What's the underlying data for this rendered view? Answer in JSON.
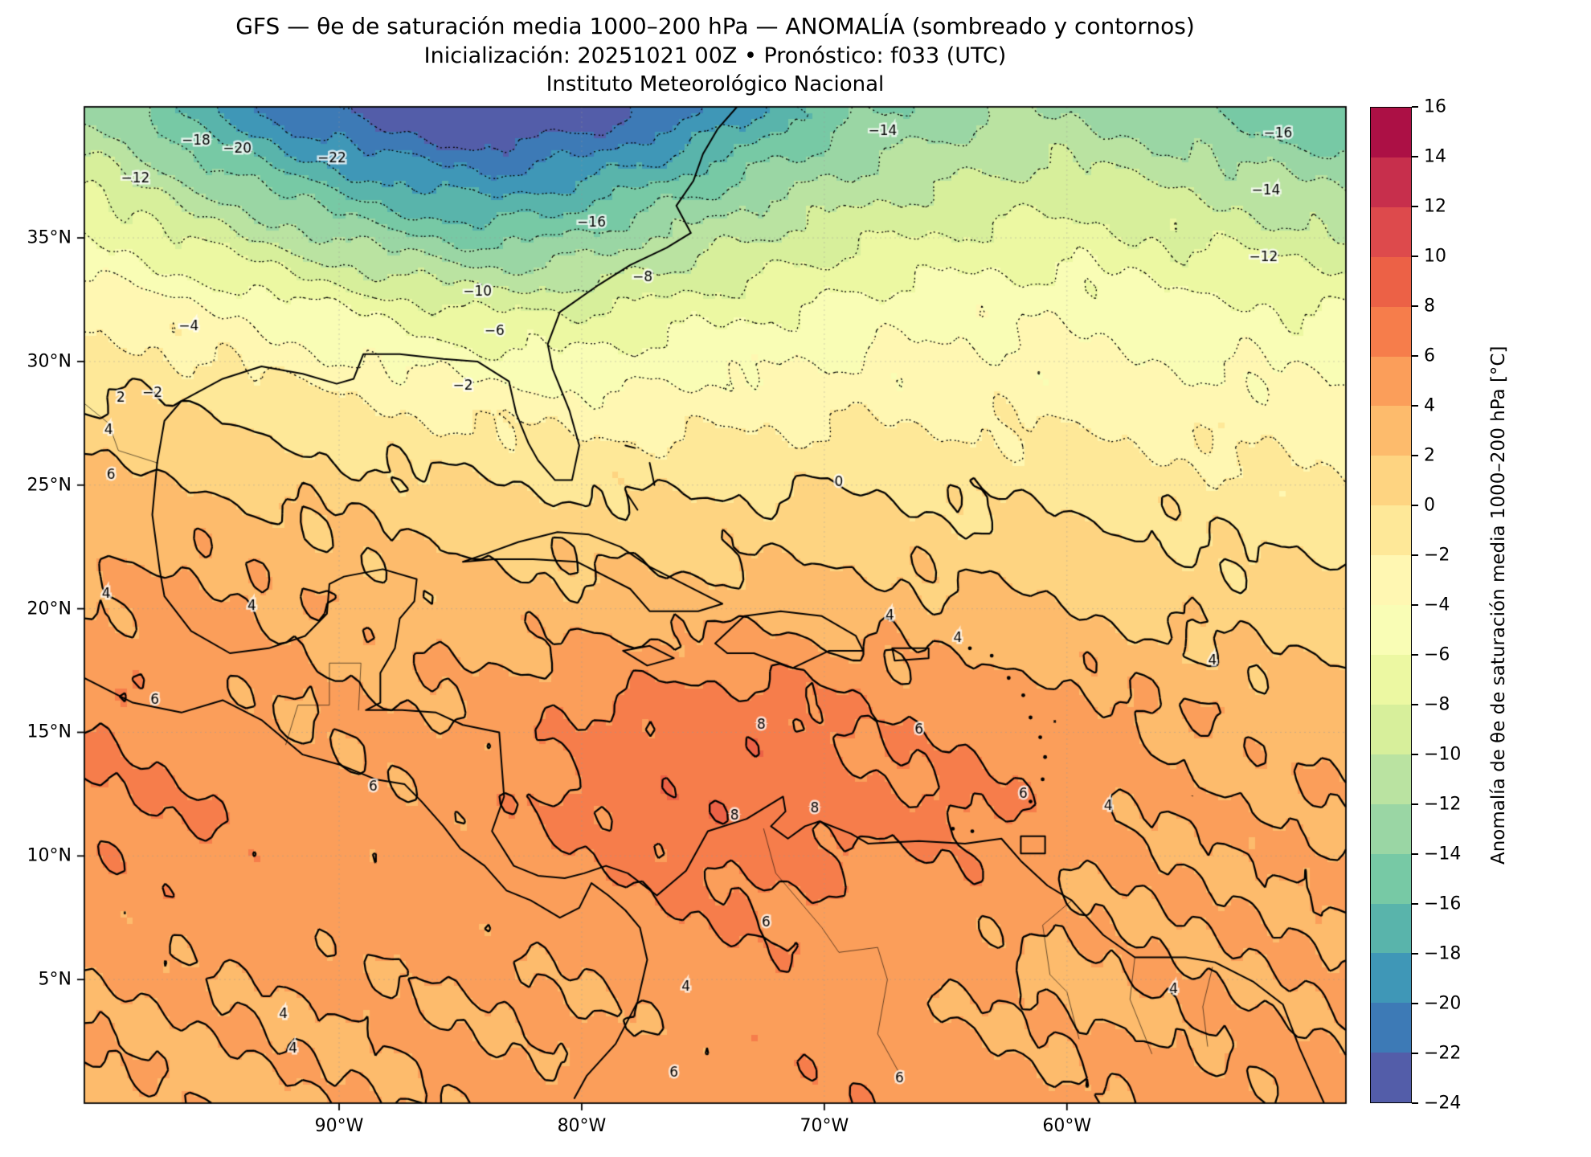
{
  "chart_data": {
    "type": "heatmap",
    "title": "GFS — θe de saturación media 1000–200 hPa — ANOMALÍA (sombreado y contornos)",
    "subtitle": "Inicialización: 20251021 00Z   •   Pronóstico: f033 (UTC)",
    "institution": "Instituto Meteorológico Nacional",
    "colorbar": {
      "label": "Anomalía de θe de saturación media 1000–200 hPa [°C]",
      "min": -24,
      "max": 16,
      "step": 2,
      "tick_labels": [
        "16",
        "14",
        "12",
        "10",
        "8",
        "6",
        "4",
        "2",
        "0",
        "−2",
        "−4",
        "−6",
        "−8",
        "−10",
        "−12",
        "−14",
        "−16",
        "−18",
        "−20",
        "−22",
        "−24"
      ]
    },
    "colormap_anchors": [
      "#5e4fa2",
      "#3288bd",
      "#66c2a5",
      "#abdda4",
      "#e6f598",
      "#ffffbf",
      "#fee08b",
      "#fdae61",
      "#f46d43",
      "#d53e4f",
      "#9e0142"
    ],
    "colors": {
      "contour": "#000000",
      "coastline": "#000000",
      "border": "#000000",
      "gridline": "#999999",
      "background": "#ffffff"
    },
    "axes": {
      "lon_range": [
        -100.5,
        -48.5
      ],
      "lat_range": [
        0,
        40.3
      ],
      "x_ticks": [
        {
          "label": "90°W",
          "lon": -90
        },
        {
          "label": "80°W",
          "lon": -80
        },
        {
          "label": "70°W",
          "lon": -70
        },
        {
          "label": "60°W",
          "lon": -60
        }
      ],
      "y_ticks": [
        {
          "label": "5°N",
          "lat": 5
        },
        {
          "label": "10°N",
          "lat": 10
        },
        {
          "label": "15°N",
          "lat": 15
        },
        {
          "label": "20°N",
          "lat": 20
        },
        {
          "label": "25°N",
          "lat": 25
        },
        {
          "label": "30°N",
          "lat": 30
        },
        {
          "label": "35°N",
          "lat": 35
        }
      ],
      "grid_on": true
    },
    "grid": {
      "lons": [
        -100,
        -96,
        -92,
        -88,
        -84,
        -80,
        -76,
        -72,
        -68,
        -64,
        -60,
        -56,
        -52,
        -48
      ],
      "lats": [
        40,
        36,
        32,
        28,
        24,
        20,
        16,
        12,
        8,
        4,
        0
      ],
      "values": [
        [
          -12,
          -17,
          -21,
          -23.5,
          -24.5,
          -23.5,
          -21,
          -17,
          -14,
          -12.5,
          -12,
          -13,
          -15,
          -16
        ],
        [
          -7,
          -10,
          -13,
          -15.5,
          -17,
          -15.5,
          -13,
          -11,
          -9.5,
          -8.5,
          -8,
          -9,
          -10,
          -11
        ],
        [
          -2.5,
          -3.5,
          -5,
          -6.5,
          -8,
          -8,
          -7,
          -6,
          -5,
          -4.5,
          -4.5,
          -5,
          -5.5,
          -6
        ],
        [
          0.5,
          0,
          -1,
          -2,
          -2.5,
          -3,
          -3,
          -2.5,
          -2.5,
          -2.5,
          -2.5,
          -3,
          -3,
          -3.5
        ],
        [
          3,
          3,
          2,
          1.5,
          1,
          0.5,
          0.5,
          0.5,
          0.5,
          0,
          0,
          -0.5,
          -1,
          -1.5
        ],
        [
          4,
          5,
          4,
          3,
          3,
          3,
          3,
          3.5,
          3,
          2.5,
          2,
          1.5,
          1,
          1
        ],
        [
          6,
          5,
          4,
          4,
          4.5,
          6,
          7,
          7,
          5.5,
          5,
          5,
          4,
          3,
          3
        ],
        [
          6,
          6,
          5,
          4.5,
          5,
          6.5,
          7.5,
          7.5,
          6.5,
          6.5,
          5,
          4,
          4,
          4
        ],
        [
          5,
          5,
          5,
          5,
          5,
          5,
          6,
          6,
          5,
          5,
          4,
          4,
          4,
          4
        ],
        [
          4,
          4,
          4,
          4,
          4,
          4,
          4.5,
          5,
          5,
          4,
          3.5,
          4,
          4,
          4
        ],
        [
          3.5,
          3.5,
          3.5,
          4,
          4.5,
          5,
          5,
          5.5,
          5.5,
          5,
          4.5,
          4.5,
          4.5,
          5
        ]
      ]
    },
    "contours": {
      "dotted_levels": [
        -22,
        -20,
        -18,
        -16,
        -14,
        -12,
        -10,
        -8,
        -6,
        -4,
        -2
      ],
      "solid_levels": [
        0,
        2,
        4,
        6,
        8
      ],
      "labels": [
        {
          "text": "−18",
          "lon": -95.9,
          "lat": 38.9
        },
        {
          "text": "−20",
          "lon": -94.2,
          "lat": 38.6
        },
        {
          "text": "−22",
          "lon": -90.3,
          "lat": 38.2
        },
        {
          "text": "−12",
          "lon": -98.4,
          "lat": 37.4
        },
        {
          "text": "−14",
          "lon": -67.6,
          "lat": 39.3
        },
        {
          "text": "−16",
          "lon": -51.3,
          "lat": 39.2
        },
        {
          "text": "−14",
          "lon": -51.8,
          "lat": 36.9
        },
        {
          "text": "−12",
          "lon": -51.9,
          "lat": 34.2
        },
        {
          "text": "−16",
          "lon": -79.6,
          "lat": 35.6
        },
        {
          "text": "−10",
          "lon": -84.3,
          "lat": 32.8
        },
        {
          "text": "−8",
          "lon": -77.5,
          "lat": 33.4
        },
        {
          "text": "−6",
          "lon": -83.6,
          "lat": 31.2
        },
        {
          "text": "−4",
          "lon": -96.2,
          "lat": 31.4
        },
        {
          "text": "−2",
          "lon": -97.7,
          "lat": 28.7
        },
        {
          "text": "−2",
          "lon": -84.9,
          "lat": 29.0
        },
        {
          "text": "0",
          "lon": -69.4,
          "lat": 25.1
        },
        {
          "text": "2",
          "lon": -99.0,
          "lat": 28.5
        },
        {
          "text": "4",
          "lon": -99.5,
          "lat": 27.2
        },
        {
          "text": "6",
          "lon": -99.4,
          "lat": 25.4
        },
        {
          "text": "4",
          "lon": -99.6,
          "lat": 20.6
        },
        {
          "text": "4",
          "lon": -93.6,
          "lat": 20.1
        },
        {
          "text": "4",
          "lon": -67.3,
          "lat": 19.7
        },
        {
          "text": "4",
          "lon": -64.5,
          "lat": 18.8
        },
        {
          "text": "4",
          "lon": -54.0,
          "lat": 17.9
        },
        {
          "text": "6",
          "lon": -97.6,
          "lat": 16.3
        },
        {
          "text": "6",
          "lon": -88.6,
          "lat": 12.8
        },
        {
          "text": "8",
          "lon": -72.6,
          "lat": 15.3
        },
        {
          "text": "6",
          "lon": -66.1,
          "lat": 15.1
        },
        {
          "text": "8",
          "lon": -73.7,
          "lat": 11.6
        },
        {
          "text": "8",
          "lon": -70.4,
          "lat": 11.9
        },
        {
          "text": "6",
          "lon": -61.8,
          "lat": 12.5
        },
        {
          "text": "4",
          "lon": -58.3,
          "lat": 12.0
        },
        {
          "text": "6",
          "lon": -72.4,
          "lat": 7.3
        },
        {
          "text": "4",
          "lon": -75.7,
          "lat": 4.7
        },
        {
          "text": "4",
          "lon": -92.3,
          "lat": 3.6
        },
        {
          "text": "4",
          "lon": -91.9,
          "lat": 2.2
        },
        {
          "text": "6",
          "lon": -76.2,
          "lat": 1.2
        },
        {
          "text": "6",
          "lon": -66.9,
          "lat": 1.0
        },
        {
          "text": "4",
          "lon": -55.6,
          "lat": 4.6
        }
      ]
    },
    "coastlines": [
      [
        [
          -97.5,
          25.9
        ],
        [
          -97.2,
          27.6
        ],
        [
          -96.5,
          28.4
        ],
        [
          -94.8,
          29.3
        ],
        [
          -93.2,
          29.8
        ],
        [
          -91.5,
          29.5
        ],
        [
          -90.1,
          29.1
        ],
        [
          -89.4,
          29.3
        ],
        [
          -89.0,
          30.3
        ],
        [
          -87.5,
          30.3
        ],
        [
          -85.7,
          30.1
        ],
        [
          -84.3,
          30.0
        ],
        [
          -83.0,
          29.2
        ],
        [
          -82.7,
          27.9
        ],
        [
          -82.2,
          26.7
        ],
        [
          -81.8,
          26.0
        ],
        [
          -81.1,
          25.2
        ],
        [
          -80.4,
          25.2
        ],
        [
          -80.1,
          26.6
        ],
        [
          -80.5,
          28.0
        ],
        [
          -81.2,
          29.7
        ],
        [
          -81.4,
          30.7
        ],
        [
          -80.9,
          32.0
        ],
        [
          -79.3,
          33.1
        ],
        [
          -78.0,
          33.9
        ],
        [
          -76.5,
          34.6
        ],
        [
          -75.5,
          35.2
        ],
        [
          -76.1,
          36.3
        ],
        [
          -75.4,
          37.3
        ],
        [
          -75.0,
          38.4
        ],
        [
          -74.4,
          39.4
        ],
        [
          -73.6,
          40.3
        ]
      ],
      [
        [
          -97.5,
          25.9
        ],
        [
          -97.7,
          23.8
        ],
        [
          -97.4,
          21.6
        ],
        [
          -97.2,
          20.5
        ],
        [
          -96.1,
          19.1
        ],
        [
          -94.5,
          18.2
        ],
        [
          -92.9,
          18.4
        ],
        [
          -91.4,
          18.9
        ],
        [
          -90.5,
          19.8
        ],
        [
          -90.4,
          21.0
        ],
        [
          -89.8,
          21.3
        ],
        [
          -88.2,
          21.6
        ],
        [
          -86.8,
          21.2
        ],
        [
          -86.9,
          20.3
        ],
        [
          -87.5,
          19.6
        ],
        [
          -87.7,
          18.4
        ],
        [
          -88.3,
          17.4
        ],
        [
          -88.3,
          16.2
        ],
        [
          -88.9,
          15.9
        ],
        [
          -87.4,
          15.9
        ],
        [
          -86.0,
          15.8
        ],
        [
          -84.9,
          15.3
        ],
        [
          -83.4,
          15.0
        ],
        [
          -83.2,
          12.4
        ],
        [
          -83.7,
          11.0
        ],
        [
          -82.8,
          9.6
        ],
        [
          -81.8,
          9.2
        ],
        [
          -80.7,
          9.1
        ],
        [
          -79.9,
          9.3
        ],
        [
          -79.0,
          9.6
        ],
        [
          -78.1,
          9.3
        ],
        [
          -77.3,
          8.7
        ]
      ],
      [
        [
          -100.5,
          17.2
        ],
        [
          -98.5,
          16.2
        ],
        [
          -96.5,
          15.8
        ],
        [
          -94.8,
          16.3
        ],
        [
          -93.2,
          15.5
        ],
        [
          -91.5,
          14.1
        ],
        [
          -90.0,
          13.7
        ],
        [
          -88.5,
          13.1
        ],
        [
          -87.3,
          12.9
        ],
        [
          -86.6,
          12.2
        ],
        [
          -85.7,
          11.2
        ],
        [
          -85.0,
          10.3
        ],
        [
          -84.0,
          9.6
        ],
        [
          -83.1,
          8.6
        ],
        [
          -82.1,
          8.2
        ],
        [
          -80.9,
          7.5
        ],
        [
          -80.1,
          7.9
        ],
        [
          -79.6,
          8.9
        ],
        [
          -78.9,
          8.4
        ],
        [
          -78.2,
          7.8
        ],
        [
          -77.6,
          7.1
        ],
        [
          -77.3,
          5.8
        ],
        [
          -77.7,
          4.1
        ],
        [
          -78.6,
          2.4
        ],
        [
          -79.8,
          1.1
        ],
        [
          -80.3,
          0.2
        ]
      ],
      [
        [
          -77.3,
          8.7
        ],
        [
          -76.9,
          8.4
        ],
        [
          -75.7,
          9.4
        ],
        [
          -74.8,
          11.0
        ],
        [
          -73.2,
          11.5
        ],
        [
          -71.7,
          12.4
        ],
        [
          -71.6,
          11.8
        ],
        [
          -72.2,
          11.2
        ],
        [
          -71.5,
          10.7
        ],
        [
          -70.8,
          11.2
        ],
        [
          -70.2,
          11.4
        ],
        [
          -68.9,
          10.9
        ],
        [
          -68.2,
          10.5
        ],
        [
          -66.1,
          10.6
        ],
        [
          -64.2,
          10.5
        ],
        [
          -62.7,
          10.7
        ],
        [
          -61.9,
          9.8
        ],
        [
          -60.8,
          8.8
        ],
        [
          -59.8,
          8.2
        ],
        [
          -58.5,
          6.8
        ],
        [
          -57.2,
          5.9
        ],
        [
          -55.1,
          5.9
        ],
        [
          -53.9,
          5.7
        ],
        [
          -52.3,
          4.9
        ],
        [
          -51.1,
          4.0
        ],
        [
          -50.4,
          2.2
        ],
        [
          -49.9,
          1.1
        ],
        [
          -49.4,
          0.0
        ]
      ],
      [
        [
          -84.9,
          21.9
        ],
        [
          -84.0,
          22.2
        ],
        [
          -82.6,
          22.7
        ],
        [
          -81.0,
          23.1
        ],
        [
          -79.7,
          23.0
        ],
        [
          -78.4,
          22.5
        ],
        [
          -77.2,
          21.7
        ],
        [
          -75.6,
          20.9
        ],
        [
          -74.2,
          20.2
        ],
        [
          -75.2,
          19.9
        ],
        [
          -77.2,
          19.9
        ],
        [
          -78.0,
          20.8
        ],
        [
          -80.2,
          21.9
        ],
        [
          -82.0,
          22.0
        ],
        [
          -83.6,
          22.0
        ],
        [
          -84.9,
          21.9
        ]
      ],
      [
        [
          -74.5,
          18.6
        ],
        [
          -73.3,
          19.7
        ],
        [
          -71.8,
          19.9
        ],
        [
          -70.1,
          19.7
        ],
        [
          -68.7,
          18.9
        ],
        [
          -68.4,
          18.3
        ],
        [
          -69.8,
          18.3
        ],
        [
          -71.3,
          17.6
        ],
        [
          -72.9,
          18.2
        ],
        [
          -74.0,
          18.2
        ],
        [
          -74.5,
          18.6
        ]
      ],
      [
        [
          -78.3,
          18.3
        ],
        [
          -77.2,
          18.5
        ],
        [
          -76.2,
          18.0
        ],
        [
          -77.3,
          17.7
        ],
        [
          -78.3,
          18.3
        ]
      ],
      [
        [
          -67.2,
          18.4
        ],
        [
          -65.7,
          18.4
        ],
        [
          -65.7,
          18.0
        ],
        [
          -67.1,
          17.9
        ],
        [
          -67.2,
          18.4
        ]
      ],
      [
        [
          -61.9,
          10.8
        ],
        [
          -60.9,
          10.8
        ],
        [
          -60.9,
          10.1
        ],
        [
          -61.9,
          10.1
        ],
        [
          -61.9,
          10.8
        ]
      ],
      [
        [
          -78.2,
          26.6
        ],
        [
          -77.8,
          26.5
        ]
      ],
      [
        [
          -77.2,
          25.9
        ],
        [
          -77.0,
          25.0
        ]
      ],
      [
        [
          -78.1,
          24.6
        ],
        [
          -77.7,
          24.0
        ]
      ]
    ],
    "island_dots": [
      [
        -64.0,
        18.4
      ],
      [
        -63.1,
        18.1
      ],
      [
        -62.4,
        17.2
      ],
      [
        -61.8,
        16.5
      ],
      [
        -61.5,
        15.6
      ],
      [
        -61.1,
        14.8
      ],
      [
        -60.9,
        14.0
      ],
      [
        -61.0,
        13.1
      ],
      [
        -61.5,
        12.2
      ],
      [
        -64.7,
        11.1
      ],
      [
        -63.9,
        11.0
      ]
    ],
    "borders": [
      [
        [
          -97.5,
          25.9
        ],
        [
          -99.1,
          26.4
        ],
        [
          -99.5,
          27.5
        ],
        [
          -100.5,
          28.3
        ]
      ],
      [
        [
          -92.2,
          14.5
        ],
        [
          -91.7,
          16.1
        ],
        [
          -90.4,
          16.1
        ],
        [
          -90.4,
          17.8
        ],
        [
          -89.1,
          17.8
        ],
        [
          -89.2,
          15.9
        ]
      ],
      [
        [
          -72.5,
          11.1
        ],
        [
          -72.0,
          9.3
        ],
        [
          -70.1,
          7.1
        ],
        [
          -69.4,
          6.1
        ],
        [
          -67.8,
          6.3
        ],
        [
          -67.4,
          5.0
        ],
        [
          -67.8,
          2.8
        ],
        [
          -66.9,
          1.2
        ]
      ],
      [
        [
          -59.8,
          8.2
        ],
        [
          -61.0,
          7.2
        ],
        [
          -60.7,
          5.2
        ],
        [
          -60.0,
          4.5
        ],
        [
          -59.5,
          2.6
        ]
      ],
      [
        [
          -57.2,
          5.9
        ],
        [
          -57.4,
          4.2
        ],
        [
          -56.5,
          2.0
        ]
      ],
      [
        [
          -54.0,
          5.5
        ],
        [
          -54.4,
          3.9
        ],
        [
          -54.2,
          2.3
        ]
      ]
    ]
  }
}
